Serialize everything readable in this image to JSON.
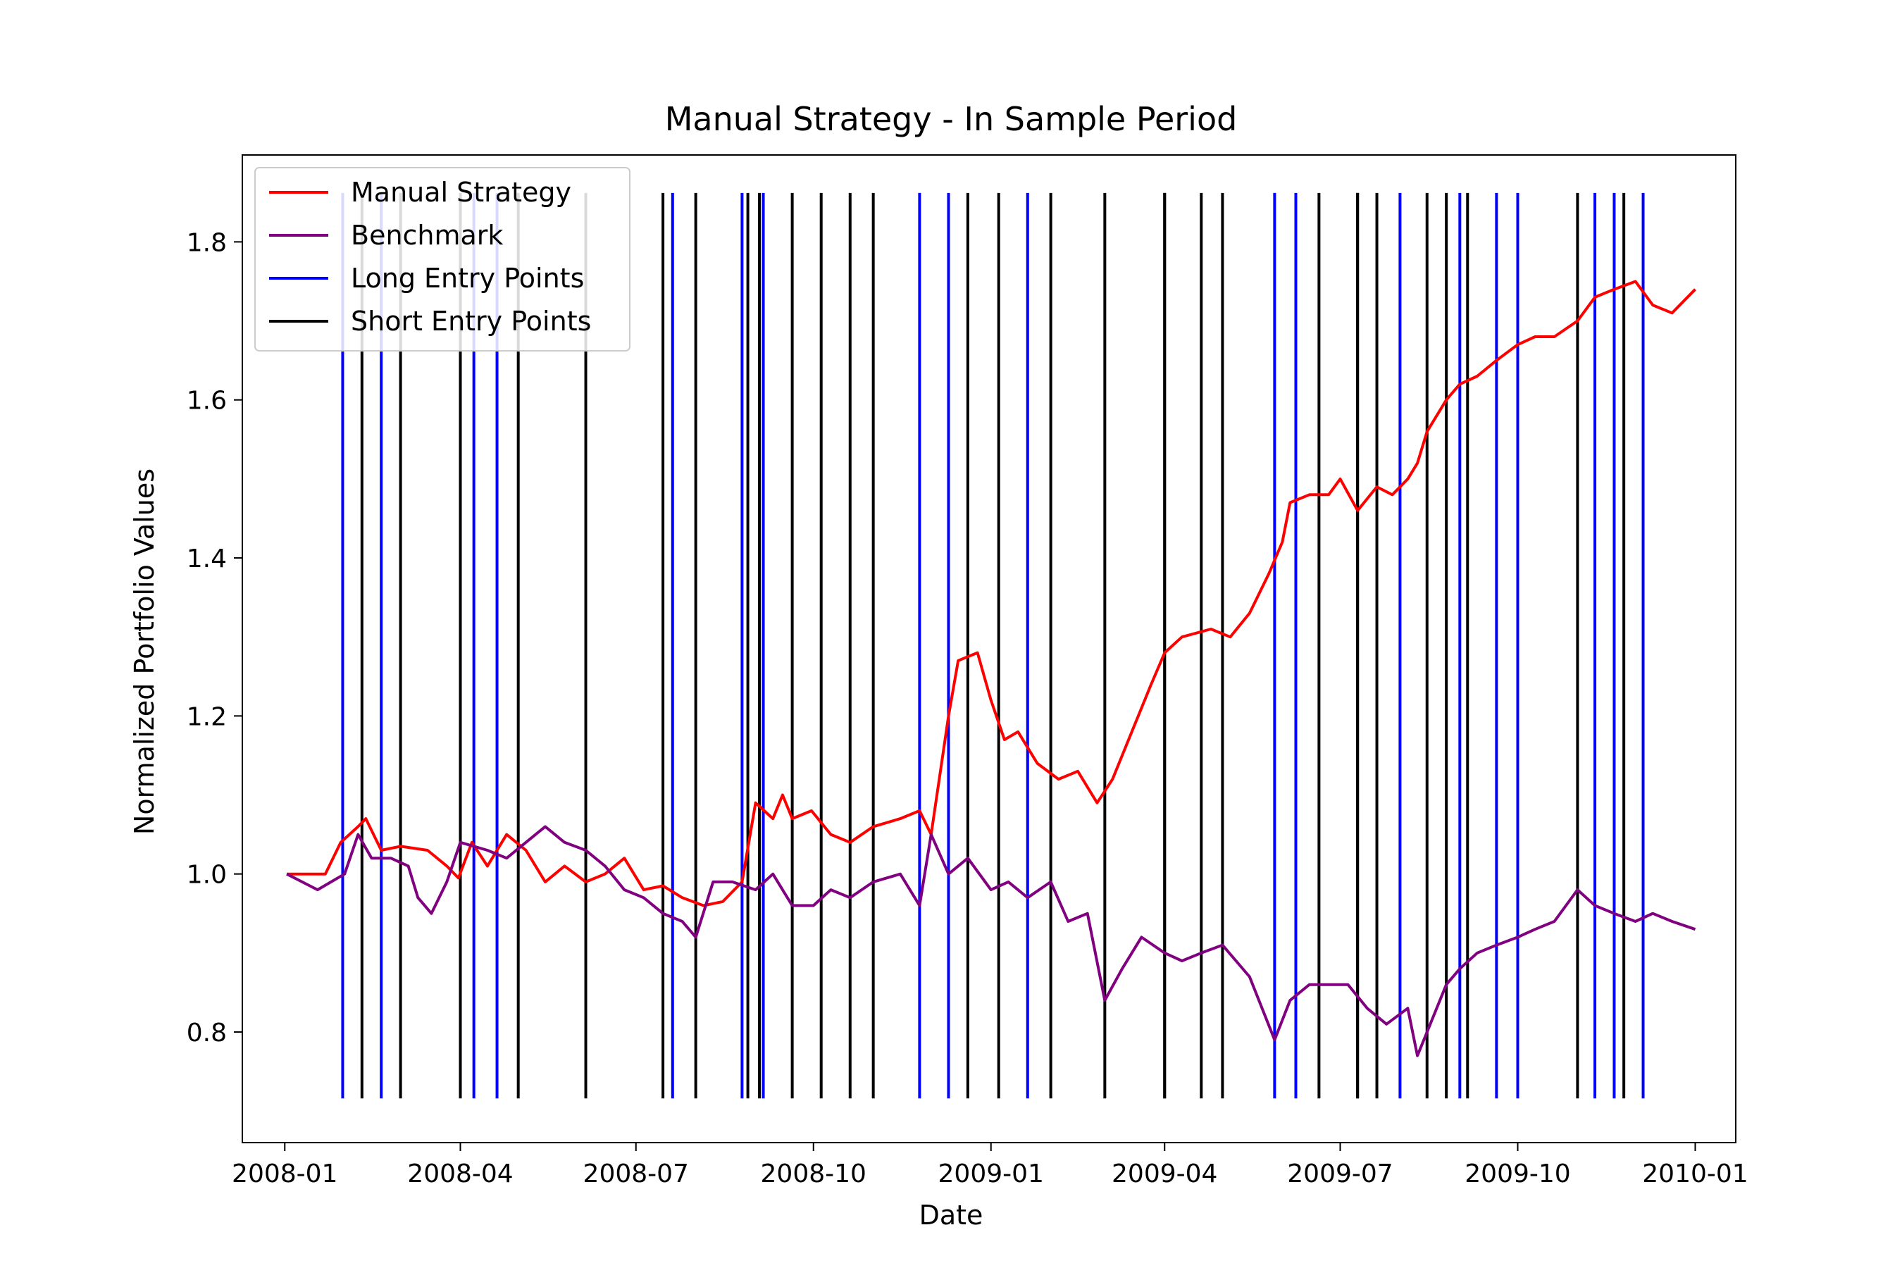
{
  "chart_data": {
    "type": "line",
    "title": "Manual Strategy - In Sample Period",
    "xlabel": "Date",
    "ylabel": "Normalized Portfolio Values",
    "x_range": [
      "2007-12-10",
      "2010-01-22"
    ],
    "ylim": [
      0.66,
      1.91
    ],
    "x_ticks": [
      "2008-01",
      "2008-04",
      "2008-07",
      "2008-10",
      "2009-01",
      "2009-04",
      "2009-07",
      "2009-10",
      "2010-01"
    ],
    "x_tick_dates": [
      "2008-01-01",
      "2008-04-01",
      "2008-07-01",
      "2008-10-01",
      "2009-01-01",
      "2009-04-01",
      "2009-07-01",
      "2009-10-01",
      "2010-01-01"
    ],
    "y_ticks": [
      "0.8",
      "1.0",
      "1.2",
      "1.4",
      "1.6",
      "1.8"
    ],
    "y_tick_values": [
      0.8,
      1.0,
      1.2,
      1.4,
      1.6,
      1.8
    ],
    "grid": false,
    "legend_position": "top-left",
    "entry_line_range": [
      0.716,
      1.862
    ],
    "series": [
      {
        "name": "Manual Strategy",
        "color": "#ff0000",
        "points": [
          [
            "2008-01-02",
            1.0
          ],
          [
            "2008-01-22",
            1.0
          ],
          [
            "2008-01-30",
            1.04
          ],
          [
            "2008-02-08",
            1.06
          ],
          [
            "2008-02-12",
            1.07
          ],
          [
            "2008-02-20",
            1.03
          ],
          [
            "2008-03-01",
            1.035
          ],
          [
            "2008-03-15",
            1.03
          ],
          [
            "2008-03-25",
            1.01
          ],
          [
            "2008-03-31",
            0.995
          ],
          [
            "2008-04-07",
            1.04
          ],
          [
            "2008-04-15",
            1.01
          ],
          [
            "2008-04-25",
            1.05
          ],
          [
            "2008-05-05",
            1.03
          ],
          [
            "2008-05-15",
            0.99
          ],
          [
            "2008-05-25",
            1.01
          ],
          [
            "2008-06-05",
            0.99
          ],
          [
            "2008-06-15",
            1.0
          ],
          [
            "2008-06-25",
            1.02
          ],
          [
            "2008-07-05",
            0.98
          ],
          [
            "2008-07-15",
            0.985
          ],
          [
            "2008-07-25",
            0.97
          ],
          [
            "2008-08-05",
            0.96
          ],
          [
            "2008-08-15",
            0.965
          ],
          [
            "2008-08-25",
            0.99
          ],
          [
            "2008-09-01",
            1.09
          ],
          [
            "2008-09-10",
            1.07
          ],
          [
            "2008-09-15",
            1.1
          ],
          [
            "2008-09-20",
            1.07
          ],
          [
            "2008-09-30",
            1.08
          ],
          [
            "2008-10-10",
            1.05
          ],
          [
            "2008-10-20",
            1.04
          ],
          [
            "2008-11-01",
            1.06
          ],
          [
            "2008-11-15",
            1.07
          ],
          [
            "2008-11-25",
            1.08
          ],
          [
            "2008-12-01",
            1.05
          ],
          [
            "2008-12-10",
            1.2
          ],
          [
            "2008-12-15",
            1.27
          ],
          [
            "2008-12-25",
            1.28
          ],
          [
            "2009-01-01",
            1.22
          ],
          [
            "2009-01-08",
            1.17
          ],
          [
            "2009-01-15",
            1.18
          ],
          [
            "2009-01-25",
            1.14
          ],
          [
            "2009-02-05",
            1.12
          ],
          [
            "2009-02-15",
            1.13
          ],
          [
            "2009-02-25",
            1.09
          ],
          [
            "2009-03-05",
            1.12
          ],
          [
            "2009-03-15",
            1.18
          ],
          [
            "2009-03-25",
            1.24
          ],
          [
            "2009-04-01",
            1.28
          ],
          [
            "2009-04-10",
            1.3
          ],
          [
            "2009-04-25",
            1.31
          ],
          [
            "2009-05-05",
            1.3
          ],
          [
            "2009-05-15",
            1.33
          ],
          [
            "2009-05-25",
            1.38
          ],
          [
            "2009-06-01",
            1.42
          ],
          [
            "2009-06-05",
            1.47
          ],
          [
            "2009-06-15",
            1.48
          ],
          [
            "2009-06-25",
            1.48
          ],
          [
            "2009-07-01",
            1.5
          ],
          [
            "2009-07-10",
            1.46
          ],
          [
            "2009-07-20",
            1.49
          ],
          [
            "2009-07-28",
            1.48
          ],
          [
            "2009-08-05",
            1.5
          ],
          [
            "2009-08-10",
            1.52
          ],
          [
            "2009-08-15",
            1.56
          ],
          [
            "2009-08-25",
            1.6
          ],
          [
            "2009-09-01",
            1.62
          ],
          [
            "2009-09-10",
            1.63
          ],
          [
            "2009-09-20",
            1.65
          ],
          [
            "2009-10-01",
            1.67
          ],
          [
            "2009-10-10",
            1.68
          ],
          [
            "2009-10-20",
            1.68
          ],
          [
            "2009-11-01",
            1.7
          ],
          [
            "2009-11-10",
            1.73
          ],
          [
            "2009-11-20",
            1.74
          ],
          [
            "2009-12-01",
            1.75
          ],
          [
            "2009-12-10",
            1.72
          ],
          [
            "2009-12-20",
            1.71
          ],
          [
            "2010-01-01",
            1.74
          ]
        ]
      },
      {
        "name": "Benchmark",
        "color": "#800080",
        "points": [
          [
            "2008-01-02",
            1.0
          ],
          [
            "2008-01-10",
            0.99
          ],
          [
            "2008-01-18",
            0.98
          ],
          [
            "2008-01-25",
            0.99
          ],
          [
            "2008-02-01",
            1.0
          ],
          [
            "2008-02-08",
            1.05
          ],
          [
            "2008-02-15",
            1.02
          ],
          [
            "2008-02-25",
            1.02
          ],
          [
            "2008-03-05",
            1.01
          ],
          [
            "2008-03-10",
            0.97
          ],
          [
            "2008-03-17",
            0.95
          ],
          [
            "2008-03-25",
            0.99
          ],
          [
            "2008-04-01",
            1.04
          ],
          [
            "2008-04-15",
            1.03
          ],
          [
            "2008-04-25",
            1.02
          ],
          [
            "2008-05-05",
            1.04
          ],
          [
            "2008-05-15",
            1.06
          ],
          [
            "2008-05-25",
            1.04
          ],
          [
            "2008-06-05",
            1.03
          ],
          [
            "2008-06-15",
            1.01
          ],
          [
            "2008-06-25",
            0.98
          ],
          [
            "2008-07-05",
            0.97
          ],
          [
            "2008-07-15",
            0.95
          ],
          [
            "2008-07-25",
            0.94
          ],
          [
            "2008-08-01",
            0.92
          ],
          [
            "2008-08-10",
            0.99
          ],
          [
            "2008-08-20",
            0.99
          ],
          [
            "2008-09-01",
            0.98
          ],
          [
            "2008-09-10",
            1.0
          ],
          [
            "2008-09-20",
            0.96
          ],
          [
            "2008-10-01",
            0.96
          ],
          [
            "2008-10-10",
            0.98
          ],
          [
            "2008-10-20",
            0.97
          ],
          [
            "2008-11-01",
            0.99
          ],
          [
            "2008-11-15",
            1.0
          ],
          [
            "2008-11-25",
            0.96
          ],
          [
            "2008-12-01",
            1.05
          ],
          [
            "2008-12-10",
            1.0
          ],
          [
            "2008-12-20",
            1.02
          ],
          [
            "2009-01-01",
            0.98
          ],
          [
            "2009-01-10",
            0.99
          ],
          [
            "2009-01-20",
            0.97
          ],
          [
            "2009-02-01",
            0.99
          ],
          [
            "2009-02-10",
            0.94
          ],
          [
            "2009-02-20",
            0.95
          ],
          [
            "2009-03-01",
            0.84
          ],
          [
            "2009-03-10",
            0.88
          ],
          [
            "2009-03-20",
            0.92
          ],
          [
            "2009-04-01",
            0.9
          ],
          [
            "2009-04-10",
            0.89
          ],
          [
            "2009-04-20",
            0.9
          ],
          [
            "2009-05-01",
            0.91
          ],
          [
            "2009-05-15",
            0.87
          ],
          [
            "2009-05-28",
            0.79
          ],
          [
            "2009-06-05",
            0.84
          ],
          [
            "2009-06-15",
            0.86
          ],
          [
            "2009-06-25",
            0.86
          ],
          [
            "2009-07-05",
            0.86
          ],
          [
            "2009-07-15",
            0.83
          ],
          [
            "2009-07-25",
            0.81
          ],
          [
            "2009-08-05",
            0.83
          ],
          [
            "2009-08-10",
            0.77
          ],
          [
            "2009-08-15",
            0.8
          ],
          [
            "2009-08-25",
            0.86
          ],
          [
            "2009-09-01",
            0.88
          ],
          [
            "2009-09-10",
            0.9
          ],
          [
            "2009-09-20",
            0.91
          ],
          [
            "2009-10-01",
            0.92
          ],
          [
            "2009-10-10",
            0.93
          ],
          [
            "2009-10-20",
            0.94
          ],
          [
            "2009-11-01",
            0.98
          ],
          [
            "2009-11-10",
            0.96
          ],
          [
            "2009-11-20",
            0.95
          ],
          [
            "2009-12-01",
            0.94
          ],
          [
            "2009-12-10",
            0.95
          ],
          [
            "2009-12-20",
            0.94
          ],
          [
            "2010-01-01",
            0.93
          ]
        ]
      },
      {
        "name": "Long Entry Points",
        "color": "#0000ff",
        "type": "vlines",
        "dates": [
          "2008-01-31",
          "2008-02-20",
          "2008-04-08",
          "2008-04-20",
          "2008-07-20",
          "2008-08-25",
          "2008-09-05",
          "2008-11-25",
          "2008-12-10",
          "2009-01-20",
          "2009-04-01",
          "2009-05-28",
          "2009-06-08",
          "2009-07-10",
          "2009-08-01",
          "2009-09-01",
          "2009-09-20",
          "2009-10-01",
          "2009-11-10",
          "2009-11-20",
          "2009-12-05"
        ]
      },
      {
        "name": "Short Entry Points",
        "color": "#000000",
        "type": "vlines",
        "dates": [
          "2008-02-10",
          "2008-03-01",
          "2008-04-01",
          "2008-05-01",
          "2008-06-05",
          "2008-07-15",
          "2008-08-01",
          "2008-08-28",
          "2008-09-03",
          "2008-09-20",
          "2008-10-05",
          "2008-10-20",
          "2008-11-01",
          "2008-12-20",
          "2009-01-05",
          "2009-02-01",
          "2009-03-01",
          "2009-04-01",
          "2009-04-20",
          "2009-05-01",
          "2009-06-20",
          "2009-07-10",
          "2009-07-20",
          "2009-08-15",
          "2009-08-25",
          "2009-09-05",
          "2009-11-01",
          "2009-11-25"
        ]
      }
    ]
  }
}
